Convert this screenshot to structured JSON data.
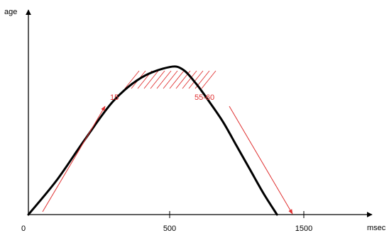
{
  "chart_data": {
    "type": "line",
    "xlabel": "msec",
    "ylabel": "age",
    "x_ticks": [
      {
        "value": 0,
        "label": "0"
      },
      {
        "value": 500,
        "label": "500"
      },
      {
        "value": 1500,
        "label": "1500"
      }
    ],
    "series": [
      {
        "color": "#000000",
        "points": [
          [
            0,
            0
          ],
          [
            100,
            26
          ],
          [
            200,
            57
          ],
          [
            300,
            86
          ],
          [
            400,
            104
          ],
          [
            500,
            112
          ],
          [
            600,
            110
          ],
          [
            700,
            99
          ],
          [
            800,
            85
          ],
          [
            900,
            70
          ],
          [
            1000,
            52
          ],
          [
            1100,
            34
          ],
          [
            1200,
            16
          ],
          [
            1300,
            0
          ]
        ]
      }
    ],
    "annotations": [
      {
        "text": "15",
        "color": "#e03030"
      },
      {
        "text": "55-60",
        "color": "#e03030"
      }
    ],
    "shaded_region": {
      "style": "diagonal hatch",
      "color": "#e03030"
    },
    "grid": false,
    "legend": "none"
  }
}
